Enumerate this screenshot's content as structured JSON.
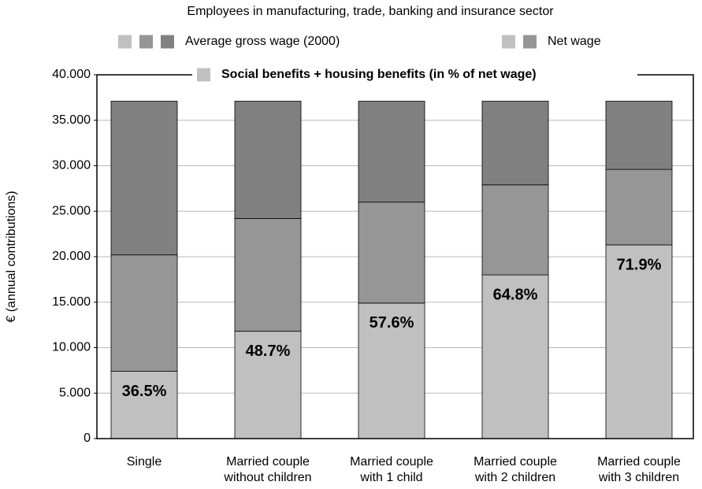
{
  "chart_data": {
    "type": "bar",
    "stacked": true,
    "title": "Employees in manufacturing, trade, banking and insurance sector",
    "y_label": "€  (annual contributions)",
    "categories": [
      [
        "Single"
      ],
      [
        "Married couple",
        "without children"
      ],
      [
        "Married couple",
        "with 1 child"
      ],
      [
        "Married couple",
        "with 2 children"
      ],
      [
        "Married couple",
        "with 3 children"
      ]
    ],
    "series": [
      {
        "color": "#c0c0c0",
        "values": [
          7400,
          11800,
          14900,
          18000,
          21300
        ]
      },
      {
        "color": "#969696",
        "values": [
          12800,
          12400,
          11100,
          9900,
          8300
        ]
      },
      {
        "color": "#808080",
        "values": [
          16900,
          12900,
          11100,
          9200,
          7500
        ]
      }
    ],
    "benefit_shares": [
      "36.5%",
      "48.7%",
      "57.6%",
      "64.8%",
      "71.9%"
    ],
    "legend": [
      {
        "label": "Average gross wage (2000)",
        "colors": [
          "#c0c0c0",
          "#969696",
          "#808080"
        ]
      },
      {
        "label": "Net wage",
        "colors": [
          "#c0c0c0",
          "#969696"
        ]
      },
      {
        "label": "Social benefits + housing benefits (in % of net wage)",
        "colors": [
          "#c0c0c0"
        ]
      }
    ],
    "ylim": [
      0,
      40000
    ],
    "yticks": [
      0,
      {
        "value": 5000,
        "label": "5.000"
      },
      {
        "value": 10000,
        "label": "10.000"
      },
      {
        "value": 15000,
        "label": "15.000"
      },
      {
        "value": 20000,
        "label": "20.000"
      },
      {
        "value": 25000,
        "label": "25.000"
      },
      {
        "value": 30000,
        "label": "30.000"
      },
      {
        "value": 35000,
        "label": "35.000"
      },
      {
        "value": 40000,
        "label": "40.000"
      }
    ],
    "grid": true
  }
}
